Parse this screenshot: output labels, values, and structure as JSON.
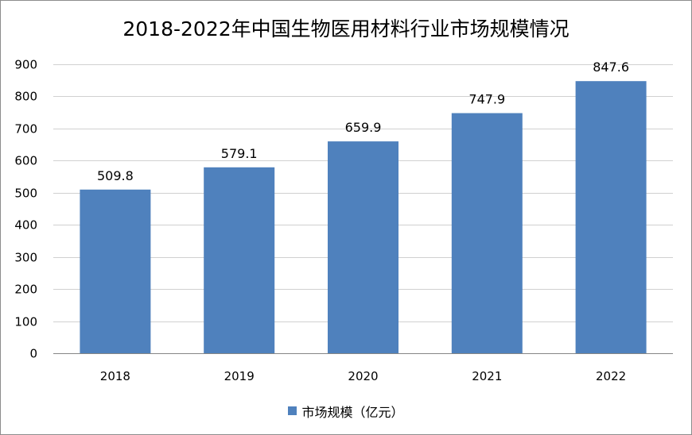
{
  "chart_data": {
    "type": "bar",
    "title": "2018-2022年中国生物医用材料行业市场规模情况",
    "categories": [
      "2018",
      "2019",
      "2020",
      "2021",
      "2022"
    ],
    "series": [
      {
        "name": "市场规模（亿元）",
        "values": [
          509.8,
          579.1,
          659.9,
          747.9,
          847.6
        ]
      }
    ],
    "data_labels": [
      "509.8",
      "579.1",
      "659.9",
      "747.9",
      "847.6"
    ],
    "y_ticks": [
      "0",
      "100",
      "200",
      "300",
      "400",
      "500",
      "600",
      "700",
      "800",
      "900"
    ],
    "ylim": [
      0,
      900
    ],
    "grid": true,
    "legend_position": "bottom",
    "colors": {
      "bar": "#4f81bd",
      "grid": "#d0d0d0",
      "axis": "#868686"
    }
  }
}
